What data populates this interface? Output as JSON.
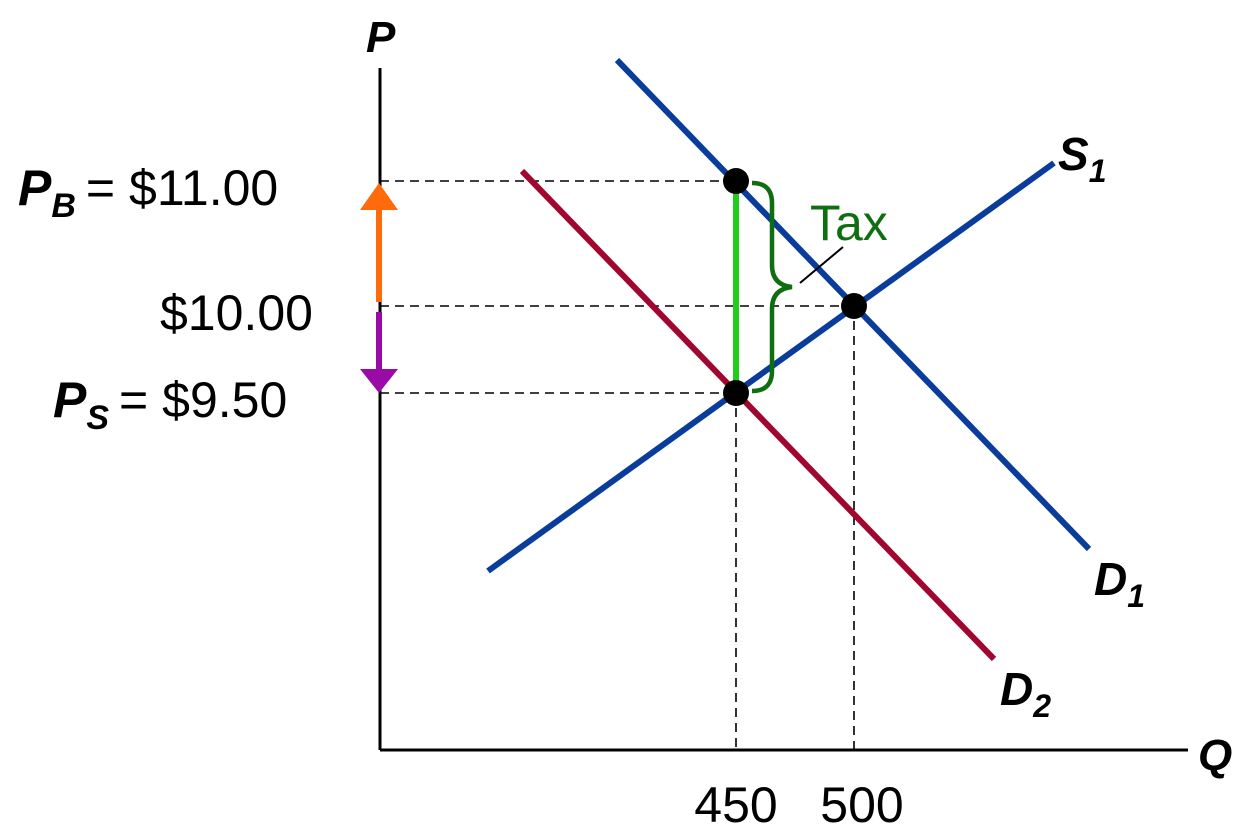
{
  "chart_data": {
    "type": "line",
    "title": "",
    "axes": {
      "x": {
        "label": "Q"
      },
      "y": {
        "label": "P"
      }
    },
    "series": [
      {
        "name": "S1",
        "label_letter": "S",
        "label_sub": "1",
        "color": "#0a3c9c",
        "points": [
          [
            -265,
            8.35
          ],
          [
            450,
            9.5
          ],
          [
            500,
            10.0
          ],
          [
            680,
            11.25
          ]
        ]
      },
      {
        "name": "D1",
        "label_letter": "D",
        "label_sub": "1",
        "color": "#0a3c9c",
        "points": [
          [
            265,
            12.0
          ],
          [
            450,
            11.0
          ],
          [
            500,
            10.0
          ],
          [
            620,
            7.25
          ]
        ]
      },
      {
        "name": "D2",
        "label_letter": "D",
        "label_sub": "2",
        "color": "#a0062e",
        "points": [
          [
            130,
            11.1
          ],
          [
            450,
            9.5
          ],
          [
            630,
            6.7
          ]
        ]
      }
    ],
    "points": [
      {
        "name": "buyer-point",
        "q": 450,
        "p": 11.0
      },
      {
        "name": "equilibrium-point",
        "q": 500,
        "p": 10.0
      },
      {
        "name": "seller-point",
        "q": 450,
        "p": 9.5
      }
    ],
    "price_labels": {
      "pb_letter": "P",
      "pb_sub": "B",
      "pb_value": "= $11.00",
      "mid_value": "$10.00",
      "ps_letter": "P",
      "ps_sub": "S",
      "ps_value": "= $9.50"
    },
    "tick_labels": {
      "q450": "450",
      "q500": "500"
    },
    "annotation": {
      "text": "Tax",
      "color": "#0f6e0f"
    },
    "arrows": {
      "up_color": "#ff6a0a",
      "down_color": "#9a0aa6",
      "tax_bar_color": "#22cc1c"
    }
  }
}
